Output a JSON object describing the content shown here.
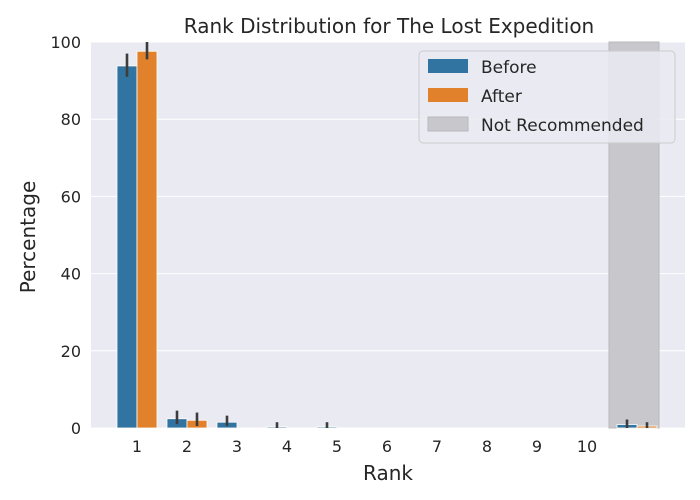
{
  "chart_data": {
    "type": "bar",
    "title": "Rank Distribution for The Lost Expedition",
    "xlabel": "Rank",
    "ylabel": "Percentage",
    "ylim": [
      0,
      100
    ],
    "yticks": [
      "0",
      "20",
      "40",
      "60",
      "80",
      "100"
    ],
    "categories": [
      "1",
      "2",
      "3",
      "4",
      "5",
      "6",
      "7",
      "8",
      "9",
      "10",
      ""
    ],
    "grid": true,
    "legend_position": "top-right",
    "series": [
      {
        "name": "Before",
        "color": "#3274a1",
        "values": [
          93.8,
          2.4,
          1.5,
          0.3,
          0.3,
          0,
          0,
          0,
          0,
          0,
          0.9
        ],
        "errors": [
          [
            91.0,
            97.0
          ],
          [
            1.0,
            4.5
          ],
          [
            0.5,
            3.2
          ],
          [
            0.0,
            1.5
          ],
          [
            0.0,
            1.5
          ],
          null,
          null,
          null,
          null,
          null,
          [
            0.0,
            2.2
          ]
        ]
      },
      {
        "name": "After",
        "color": "#e1812c",
        "values": [
          97.6,
          2.0,
          0,
          0,
          0,
          0,
          0,
          0,
          0,
          0,
          0.5
        ],
        "errors": [
          [
            95.5,
            100.0
          ],
          [
            0.5,
            4.0
          ],
          null,
          null,
          null,
          null,
          null,
          null,
          null,
          null,
          [
            0.0,
            1.5
          ]
        ]
      }
    ],
    "highlight": {
      "name": "Not Recommended",
      "category_index": 10,
      "color": "#c8c8cc"
    },
    "plot_background": "#eaeaf2",
    "gridline_color": "#ffffff"
  }
}
